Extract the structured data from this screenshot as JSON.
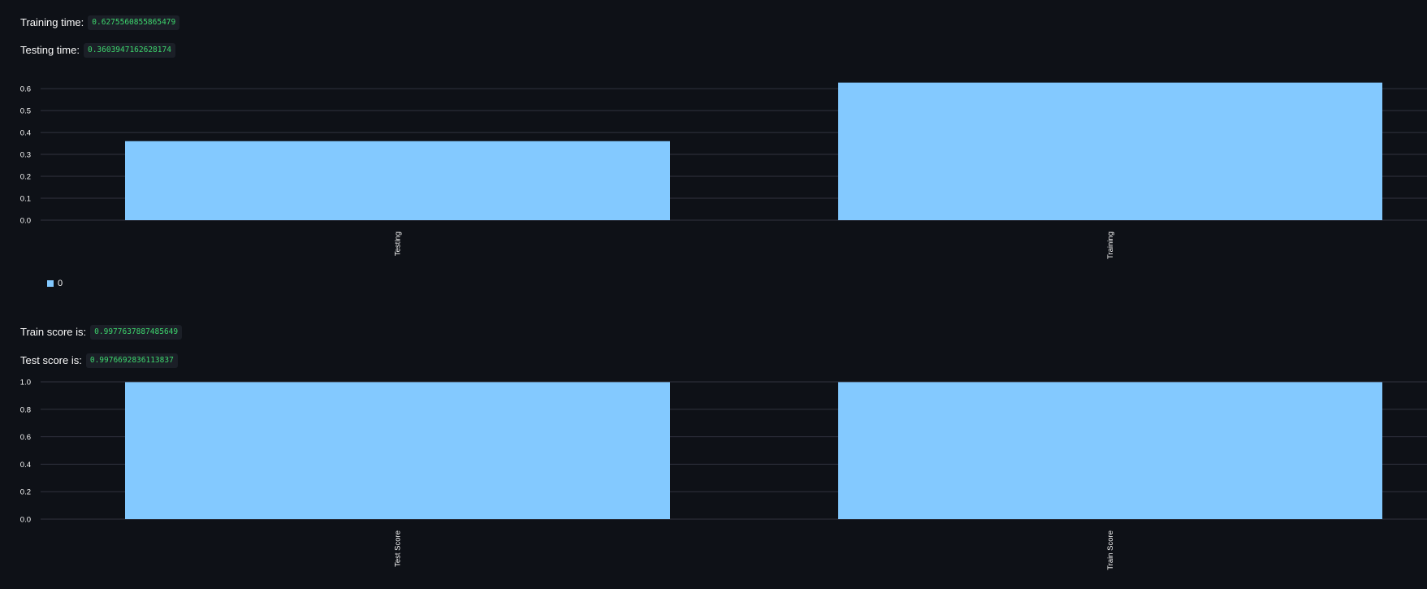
{
  "metrics": {
    "training_time_label": "Training time:",
    "training_time_value": "0.6275560855865479",
    "testing_time_label": "Testing time:",
    "testing_time_value": "0.3603947162628174",
    "train_score_label": "Train score is:",
    "train_score_value": "0.9977637887485649",
    "test_score_label": "Test score is:",
    "test_score_value": "0.9976692836113837"
  },
  "colors": {
    "background": "#0e1117",
    "bar": "#83c9ff",
    "grid": "#31333f",
    "code_text": "#3dd56d"
  },
  "legend": {
    "label": "0"
  },
  "chart_data": [
    {
      "type": "bar",
      "categories": [
        "Testing",
        "Training"
      ],
      "series": [
        {
          "name": "0",
          "values": [
            0.3603947162628174,
            0.6275560855865479
          ]
        }
      ],
      "yticks": [
        "0.0",
        "0.1",
        "0.2",
        "0.3",
        "0.4",
        "0.5",
        "0.6"
      ],
      "ylim": [
        0,
        0.63
      ],
      "grid": true
    },
    {
      "type": "bar",
      "categories": [
        "Test Score",
        "Train Score"
      ],
      "series": [
        {
          "values": [
            0.9976692836113837,
            0.9977637887485649
          ]
        }
      ],
      "yticks": [
        "0.0",
        "0.2",
        "0.4",
        "0.6",
        "0.8",
        "1.0"
      ],
      "ylim": [
        0,
        1.0
      ],
      "grid": true
    }
  ]
}
